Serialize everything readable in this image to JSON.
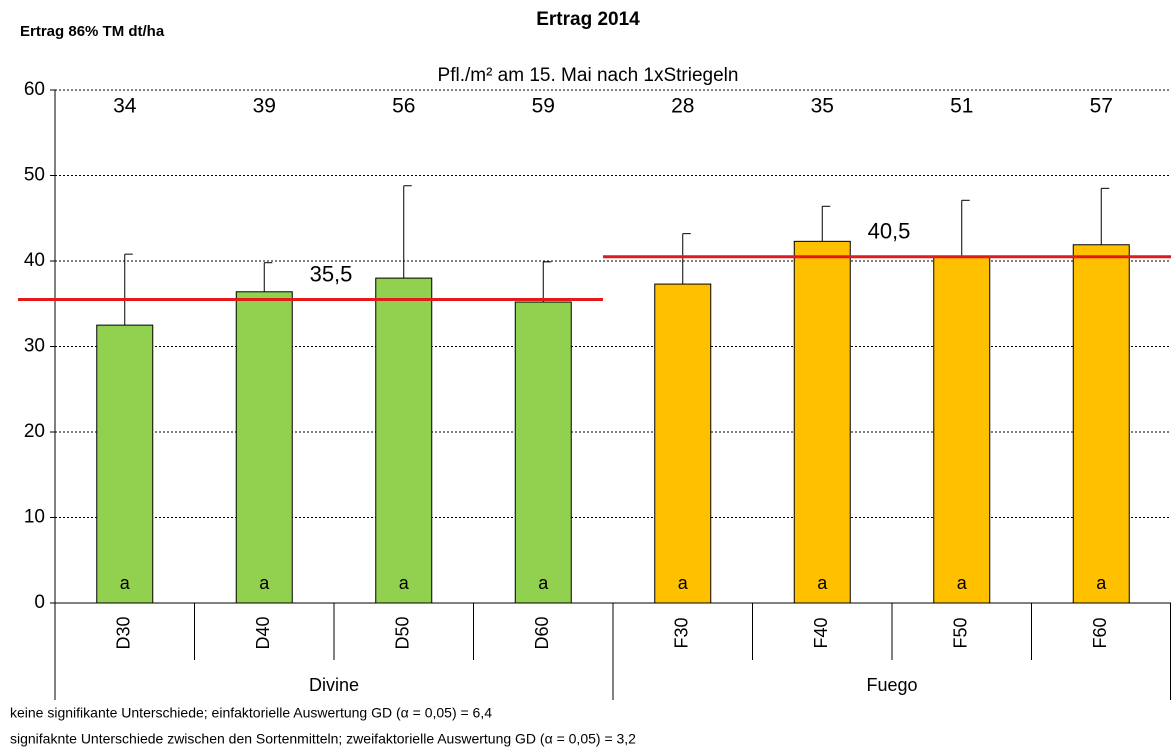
{
  "chart_data": {
    "type": "bar",
    "title": "Ertrag 2014",
    "ylabel": "Ertrag 86%  TM dt/ha",
    "subtitle": "Pfl./m² am 15. Mai nach 1xStriegeln",
    "categories": [
      "D30",
      "D40",
      "D50",
      "D60",
      "F30",
      "F40",
      "F50",
      "F60"
    ],
    "groups": [
      "Divine",
      "Fuego"
    ],
    "values": [
      32.5,
      36.4,
      38.0,
      35.2,
      37.3,
      42.3,
      40.5,
      41.9
    ],
    "errors": [
      8.3,
      3.4,
      10.8,
      4.7,
      5.9,
      4.1,
      6.6,
      6.6
    ],
    "colors": [
      "#92d050",
      "#92d050",
      "#92d050",
      "#92d050",
      "#ffc000",
      "#ffc000",
      "#ffc000",
      "#ffc000"
    ],
    "plants": [
      34,
      39,
      56,
      59,
      28,
      35,
      51,
      57
    ],
    "letters": [
      "a",
      "a",
      "a",
      "a",
      "a",
      "a",
      "a",
      "a"
    ],
    "mean_lines": [
      {
        "value": 35.5,
        "label": "35,5",
        "color": "#e31a1c"
      },
      {
        "value": 40.5,
        "label": "40,5",
        "color": "#e31a1c"
      }
    ],
    "ylim": [
      0,
      60
    ],
    "yticks": [
      0,
      10,
      20,
      30,
      40,
      50,
      60
    ],
    "grid": true,
    "notes": [
      "keine signifikante Unterschiede; einfaktorielle Auswertung GD  (α = 0,05) = 6,4",
      "signifaknte Unterschiede zwischen den Sortenmitteln; zweifaktorielle Auswertung GD (α = 0,05) = 3,2"
    ]
  }
}
